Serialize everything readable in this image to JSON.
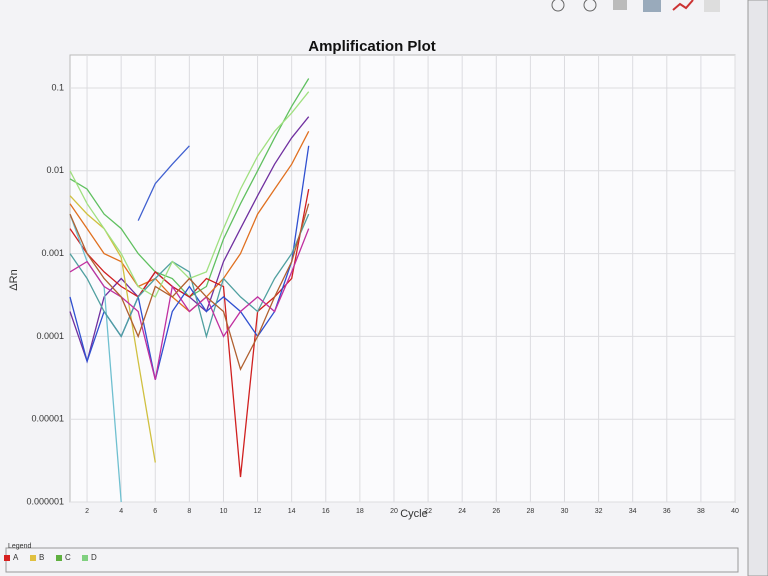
{
  "chart_data": {
    "type": "line",
    "title": "Amplification Plot",
    "x_label": "Cycle",
    "y_label": "ΔRn",
    "log_y": true,
    "grid": true,
    "xlim": [
      1,
      40
    ],
    "xticks": [
      2,
      4,
      6,
      8,
      10,
      12,
      14,
      16,
      18,
      20,
      22,
      24,
      26,
      28,
      30,
      32,
      34,
      36,
      38,
      40
    ],
    "ylim": [
      1e-06,
      0.25
    ],
    "yticks": [
      {
        "value": 1e-06,
        "label": "0.000001"
      },
      1e-05,
      0.0001,
      0.001,
      0.01,
      0.1
    ],
    "x": [
      1,
      2,
      3,
      4,
      5,
      6,
      7,
      8,
      9,
      10,
      11,
      12,
      13,
      14,
      15
    ],
    "series": [
      {
        "color": "#7030a0",
        "values": [
          0.0002,
          5e-05,
          0.0003,
          0.0005,
          0.0003,
          0.0006,
          0.0004,
          0.0003,
          0.0002,
          0.0008,
          0.002,
          0.005,
          0.012,
          0.025,
          0.045
        ]
      },
      {
        "color": "#60c060",
        "values": [
          0.008,
          0.006,
          0.003,
          0.002,
          0.001,
          0.0006,
          0.0005,
          0.0003,
          0.0004,
          0.0015,
          0.004,
          0.01,
          0.025,
          0.06,
          0.13
        ]
      },
      {
        "color": "#e07020",
        "values": [
          0.004,
          0.002,
          0.001,
          0.0008,
          0.0004,
          0.0005,
          0.0003,
          0.0002,
          0.0003,
          0.0005,
          0.001,
          0.003,
          0.006,
          0.012,
          0.03
        ]
      },
      {
        "color": "#d02020",
        "values": [
          0.002,
          0.001,
          0.0006,
          0.0004,
          0.0003,
          0.0006,
          0.0004,
          0.0003,
          0.0005,
          0.0004,
          2e-06,
          0.0002,
          0.0003,
          0.0005,
          0.006
        ]
      },
      {
        "color": "#70c0d0",
        "values": [
          0.003,
          0.0008,
          0.0004,
          1e-06,
          null,
          null,
          null,
          null,
          null,
          null,
          null,
          null,
          null,
          null,
          null
        ]
      },
      {
        "color": "#d0c040",
        "values": [
          0.005,
          0.003,
          0.002,
          0.0009,
          5e-05,
          3e-06,
          null,
          null,
          null,
          null,
          null,
          null,
          null,
          null,
          null
        ]
      },
      {
        "color": "#3050d0",
        "values": [
          0.0003,
          5e-05,
          0.0002,
          0.0001,
          0.0003,
          3e-05,
          0.0002,
          0.0004,
          0.0002,
          0.0003,
          0.0002,
          0.0001,
          0.0002,
          0.0008,
          0.02
        ]
      },
      {
        "color": "#4060d0",
        "values": [
          null,
          null,
          null,
          null,
          0.0025,
          0.007,
          0.012,
          0.02,
          null,
          null,
          null,
          null,
          null,
          null,
          null
        ]
      },
      {
        "color": "#50a0a0",
        "values": [
          0.001,
          0.0005,
          0.0002,
          0.0001,
          0.0003,
          0.0005,
          0.0008,
          0.0006,
          0.0001,
          0.0005,
          0.0003,
          0.0002,
          0.0005,
          0.001,
          0.003
        ]
      },
      {
        "color": "#a0e080",
        "values": [
          0.01,
          0.004,
          0.002,
          0.001,
          0.0004,
          0.0003,
          0.0008,
          0.0005,
          0.0006,
          0.002,
          0.006,
          0.015,
          0.03,
          0.05,
          0.09
        ]
      },
      {
        "color": "#c030a0",
        "values": [
          0.0006,
          0.0008,
          0.0004,
          0.0003,
          0.0002,
          3e-05,
          0.0004,
          0.0002,
          0.0003,
          0.0001,
          0.0002,
          0.0003,
          0.0002,
          0.0006,
          0.002
        ]
      },
      {
        "color": "#b06030",
        "values": [
          0.003,
          0.001,
          0.0005,
          0.0003,
          0.0001,
          0.0004,
          0.0003,
          0.0005,
          0.0003,
          0.0002,
          4e-05,
          0.0001,
          0.0003,
          0.0008,
          0.004
        ]
      }
    ],
    "legend": {
      "title": "Legend",
      "items": [
        {
          "name": "A",
          "color": "#d62020"
        },
        {
          "name": "B",
          "color": "#e0c040"
        },
        {
          "name": "C",
          "color": "#60b040"
        },
        {
          "name": "D",
          "color": "#80d080"
        }
      ]
    }
  }
}
